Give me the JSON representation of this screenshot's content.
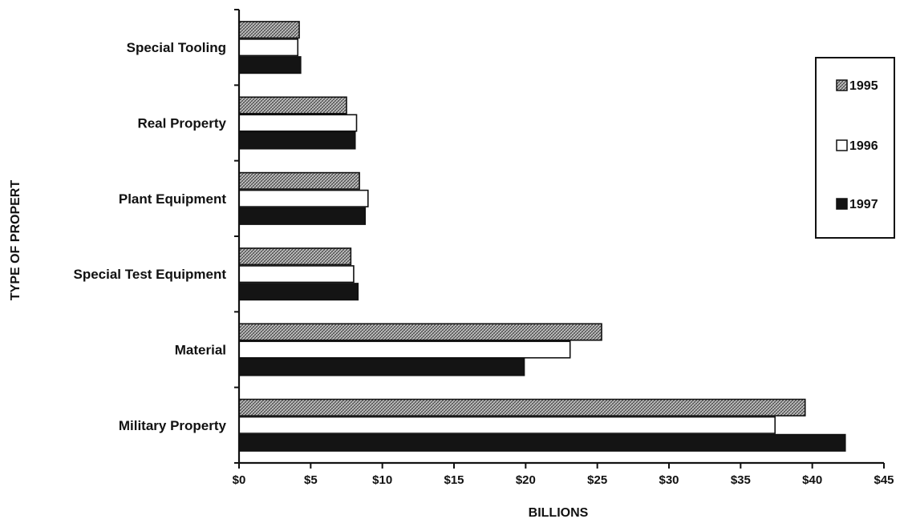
{
  "chart_data": {
    "type": "bar",
    "orientation": "horizontal",
    "title": "",
    "xlabel": "BILLIONS",
    "ylabel": "TYPE OF PROPERT",
    "categories": [
      "Special Tooling",
      "Real Property",
      "Plant Equipment",
      "Special Test Equipment",
      "Material",
      "Military Property"
    ],
    "series": [
      {
        "name": "1995",
        "values": [
          4.2,
          7.5,
          8.4,
          7.8,
          25.3,
          39.5
        ],
        "color": "#b8b8b8",
        "pattern": "crosshatch"
      },
      {
        "name": "1996",
        "values": [
          4.1,
          8.2,
          9.0,
          8.0,
          23.1,
          37.4
        ],
        "color": "#ffffff",
        "pattern": "none"
      },
      {
        "name": "1997",
        "values": [
          4.3,
          8.1,
          8.8,
          8.3,
          19.9,
          42.3
        ],
        "color": "#141414",
        "pattern": "solid"
      }
    ],
    "xlim": [
      0,
      45
    ],
    "xticks": [
      "$0",
      "$5",
      "$10",
      "$15",
      "$20",
      "$25",
      "$30",
      "$35",
      "$40",
      "$45"
    ],
    "grid": false,
    "legend_position": "right"
  }
}
